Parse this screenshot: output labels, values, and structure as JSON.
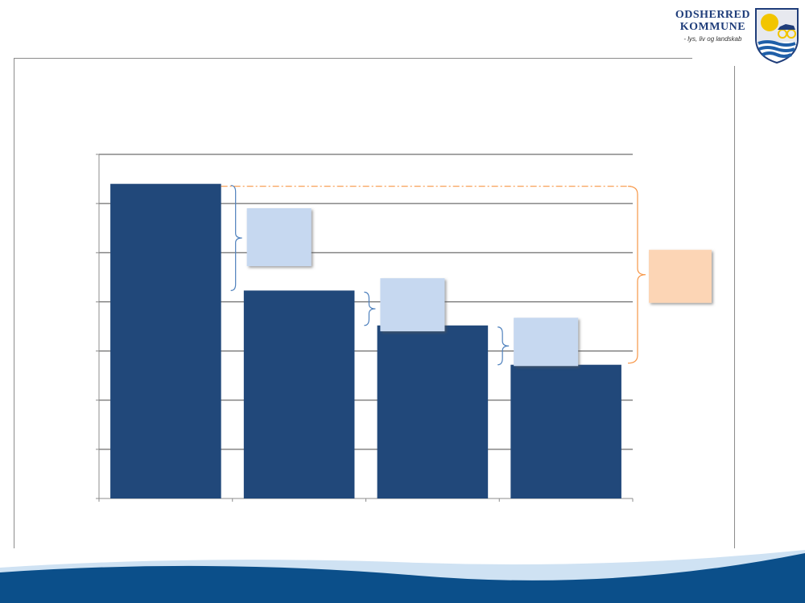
{
  "logo": {
    "name_line1": "ODSHERRED",
    "name_line2": "KOMMUNE",
    "tagline": "- lys, liv og landskab"
  },
  "colors": {
    "bar": "#21487a",
    "grid": "#4a4a4a",
    "axis": "#8c8c8c",
    "annotation_blue_fill": "#c6d8f0",
    "annotation_orange_fill": "#fcd5b5",
    "bracket_blue": "#4f81bd",
    "bracket_orange": "#f79646",
    "wave_dark": "#0b4f8a",
    "wave_light": "#cfe2f3"
  },
  "chart_data": {
    "type": "bar",
    "categories": [
      "",
      "",
      "",
      ""
    ],
    "values": [
      6.4,
      4.23,
      3.52,
      2.72
    ],
    "ylim": [
      0,
      7
    ],
    "yticks": [
      0,
      1,
      2,
      3,
      4,
      5,
      6,
      7
    ],
    "title": "",
    "xlabel": "",
    "ylabel": "",
    "grid": true,
    "annotations": [
      {
        "kind": "difference-box",
        "from_bar": 0,
        "to_bar": 1,
        "label": "",
        "color": "blue"
      },
      {
        "kind": "difference-box",
        "from_bar": 1,
        "to_bar": 2,
        "label": "",
        "color": "blue"
      },
      {
        "kind": "difference-box",
        "from_bar": 2,
        "to_bar": 3,
        "label": "",
        "color": "blue"
      },
      {
        "kind": "total-difference-box",
        "from_bar": 0,
        "to_bar": 3,
        "label": "",
        "color": "orange"
      }
    ]
  }
}
